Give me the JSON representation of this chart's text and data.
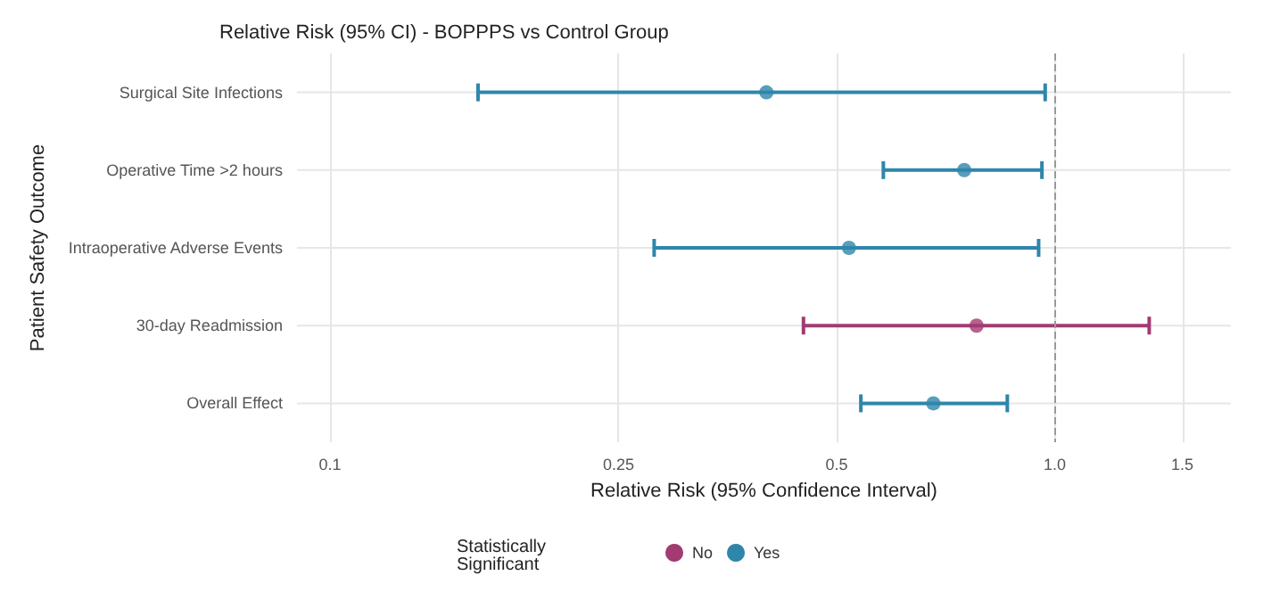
{
  "chart_data": {
    "type": "scatter",
    "orientation": "horizontal",
    "title": "Relative Risk (95% CI) - BOPPPS vs Control Group",
    "xlabel": "Relative Risk (95% Confidence Interval)",
    "ylabel": "Patient Safety Outcome",
    "legend_title": "Statistically Significant",
    "categories": [
      "Surgical Site Infections",
      "Operative Time >2 hours",
      "Intraoperative Adverse Events",
      "30-day Readmission",
      "Overall Effect"
    ],
    "series": [
      {
        "name": "No",
        "color": "#a23b72",
        "values": [
          null,
          null,
          null,
          0.78,
          null
        ],
        "errors": [
          null,
          null,
          null,
          [
            0.45,
            1.35
          ],
          null
        ]
      },
      {
        "name": "Yes",
        "color": "#2e86ab",
        "values": [
          0.4,
          0.75,
          0.52,
          null,
          0.68
        ],
        "errors": [
          [
            0.16,
            0.97
          ],
          [
            0.58,
            0.96
          ],
          [
            0.28,
            0.95
          ],
          null,
          [
            0.54,
            0.86
          ]
        ]
      }
    ],
    "log": "x",
    "xlim": [
      0.09,
      1.75
    ],
    "xticks": [
      0.1,
      0.25,
      0.5,
      {
        "value": 1,
        "label": "1.0"
      },
      1.5
    ],
    "ref_lines": [
      {
        "axis": "x",
        "value": 1,
        "color": "#999999",
        "line_style": "dashed"
      }
    ],
    "grid": true,
    "legend": "bottom",
    "marker": "circle"
  }
}
